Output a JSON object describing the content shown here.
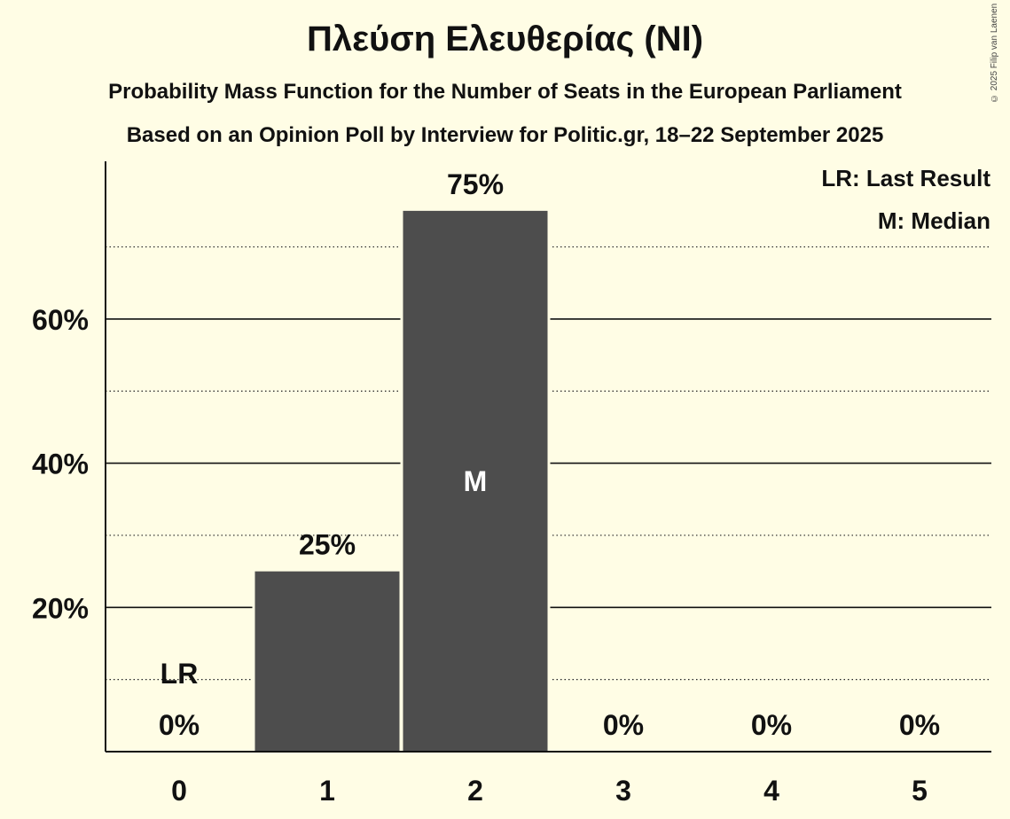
{
  "header": {
    "title": "Πλεύση Ελευθερίας (NI)",
    "subtitle": "Probability Mass Function for the Number of Seats in the European Parliament",
    "source_line": "Based on an Opinion Poll by Interview for Politic.gr, 18–22 September 2025",
    "copyright": "© 2025 Filip van Laenen"
  },
  "colors": {
    "background": "#fffde5",
    "bar": "#4d4d4d",
    "text": "#111111"
  },
  "chart_data": {
    "type": "bar",
    "title": "Πλεύση Ελευθερίας (NI)",
    "xlabel": "",
    "ylabel": "",
    "categories": [
      "0",
      "1",
      "2",
      "3",
      "4",
      "5"
    ],
    "values": [
      0,
      25,
      75,
      0,
      0,
      0
    ],
    "value_labels": [
      "0%",
      "25%",
      "75%",
      "0%",
      "0%",
      "0%"
    ],
    "ylim": [
      0,
      80
    ],
    "yticks": [
      20,
      40,
      60
    ],
    "ytick_labels": [
      "20%",
      "40%",
      "60%"
    ],
    "minor_gridlines": [
      10,
      30,
      50,
      70
    ],
    "last_result": {
      "category": "0",
      "label": "LR"
    },
    "median": {
      "category": "2",
      "label": "M"
    },
    "legend": [
      "LR: Last Result",
      "M: Median"
    ],
    "legend_position": "top-right"
  }
}
